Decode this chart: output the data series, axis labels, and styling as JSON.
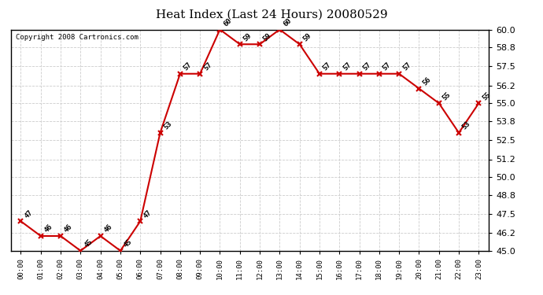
{
  "title": "Heat Index (Last 24 Hours) 20080529",
  "copyright": "Copyright 2008 Cartronics.com",
  "x_labels": [
    "00:00",
    "01:00",
    "02:00",
    "03:00",
    "04:00",
    "05:00",
    "06:00",
    "07:00",
    "08:00",
    "09:00",
    "10:00",
    "11:00",
    "12:00",
    "13:00",
    "14:00",
    "15:00",
    "16:00",
    "17:00",
    "18:00",
    "19:00",
    "20:00",
    "21:00",
    "22:00",
    "23:00"
  ],
  "y_values": [
    47,
    46,
    46,
    45,
    46,
    45,
    47,
    53,
    57,
    57,
    60,
    59,
    59,
    60,
    59,
    57,
    57,
    57,
    57,
    57,
    56,
    55,
    53,
    55
  ],
  "point_labels": [
    "47",
    "46",
    "46",
    "45",
    "46",
    "45",
    "47",
    "53",
    "57",
    "57",
    "60",
    "59",
    "59",
    "60",
    "59",
    "57",
    "57",
    "57",
    "57",
    "57",
    "56",
    "55",
    "53",
    "55"
  ],
  "ylim": [
    45.0,
    60.0
  ],
  "yticks": [
    45.0,
    46.2,
    47.5,
    48.8,
    50.0,
    51.2,
    52.5,
    53.8,
    55.0,
    56.2,
    57.5,
    58.8,
    60.0
  ],
  "line_color": "#cc0000",
  "marker_color": "#cc0000",
  "bg_color": "#ffffff",
  "grid_color": "#cccccc",
  "title_fontsize": 11,
  "label_fontsize": 6.5,
  "copyright_fontsize": 6.5,
  "ytick_fontsize": 8,
  "xtick_fontsize": 6.5
}
